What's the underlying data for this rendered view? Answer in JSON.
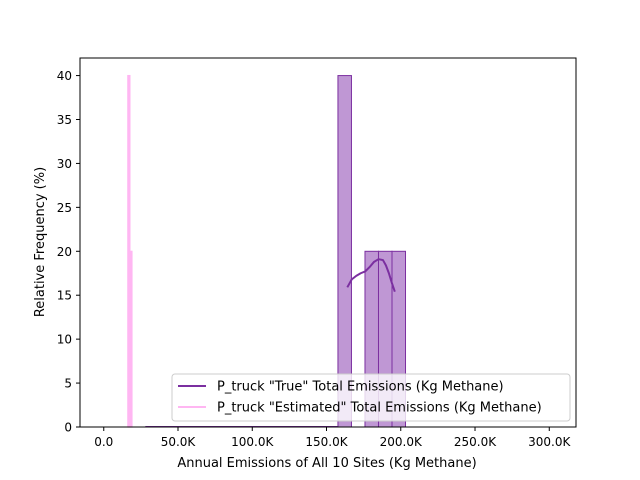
{
  "chart_data": {
    "type": "bar",
    "title": "",
    "xlabel": "Annual Emissions of All 10 Sites (Kg Methane)",
    "ylabel": "Relative Frequency (%)",
    "xlim": [
      -16000,
      318000
    ],
    "ylim": [
      0,
      42
    ],
    "grid": false,
    "legend_position": "lower-right",
    "xticks": [
      {
        "value": 0,
        "label": "0.0"
      },
      {
        "value": 50000,
        "label": "50.0K"
      },
      {
        "value": 100000,
        "label": "100.0K"
      },
      {
        "value": 150000,
        "label": "150.0K"
      },
      {
        "value": 200000,
        "label": "200.0K"
      },
      {
        "value": 250000,
        "label": "250.0K"
      },
      {
        "value": 300000,
        "label": "300.0K"
      }
    ],
    "yticks": [
      {
        "value": 0,
        "label": "0"
      },
      {
        "value": 5,
        "label": "5"
      },
      {
        "value": 10,
        "label": "10"
      },
      {
        "value": 15,
        "label": "15"
      },
      {
        "value": 20,
        "label": "20"
      },
      {
        "value": 25,
        "label": "25"
      },
      {
        "value": 30,
        "label": "30"
      },
      {
        "value": 35,
        "label": "35"
      },
      {
        "value": 40,
        "label": "40"
      }
    ],
    "series": [
      {
        "name": "P_truck \"True\" Total Emissions (Kg Methane)",
        "color": "#7b2fa0",
        "fill": "#bf97d4",
        "bins": [
          {
            "x0": 157700,
            "x1": 166800,
            "value": 40
          },
          {
            "x0": 166800,
            "x1": 175900,
            "value": 0
          },
          {
            "x0": 175900,
            "x1": 185000,
            "value": 20
          },
          {
            "x0": 185000,
            "x1": 194100,
            "value": 20
          },
          {
            "x0": 194100,
            "x1": 203200,
            "value": 20
          }
        ],
        "kde": {
          "x": [
            164000,
            167000,
            170000,
            173000,
            176000,
            179000,
            182000,
            185000,
            188000,
            190000,
            192000,
            194000,
            196000
          ],
          "y": [
            15.9,
            16.8,
            17.2,
            17.5,
            17.7,
            18.2,
            18.8,
            19.1,
            19.0,
            18.4,
            17.5,
            16.4,
            15.4
          ]
        }
      },
      {
        "name": "P_truck \"Estimated\" Total Emissions (Kg Methane)",
        "color": "#ffb6f2",
        "fill": "#ffd6f8",
        "bins": [
          {
            "x0": 16200,
            "x1": 16900,
            "value": 40
          },
          {
            "x0": 16900,
            "x1": 17600,
            "value": 40
          },
          {
            "x0": 17600,
            "x1": 18300,
            "value": 0
          },
          {
            "x0": 18300,
            "x1": 19000,
            "value": 20
          }
        ]
      }
    ]
  }
}
